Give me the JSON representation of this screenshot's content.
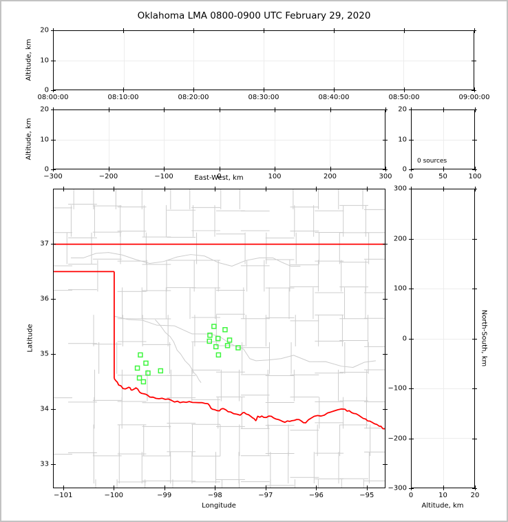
{
  "figure": {
    "title": "Oklahoma LMA 0800-0900 UTC February 29, 2020"
  },
  "colors": {
    "state_border": "#ff0000",
    "county_line": "#cccccc",
    "station_marker": "#3cf53c",
    "gridline": "#ececec",
    "axis": "#000000",
    "frame": "#c2c2c2"
  },
  "chart_data": [
    {
      "id": "time_height_panel",
      "type": "scatter",
      "title": "",
      "xlabel": "",
      "ylabel": "Altitude, km",
      "x_tick_labels": [
        "08:00:00",
        "08:10:00",
        "08:20:00",
        "08:30:00",
        "08:40:00",
        "08:50:00",
        "09:00:00"
      ],
      "ylim": [
        0,
        20
      ],
      "y_ticks": [
        0,
        10,
        20
      ],
      "grid": true,
      "points": []
    },
    {
      "id": "eastwest_height_panel",
      "type": "scatter",
      "xlabel": "East-West, km",
      "ylabel": "Altitude, km",
      "xlim": [
        -300,
        300
      ],
      "x_ticks": [
        -300,
        -200,
        -100,
        0,
        100,
        200,
        300
      ],
      "ylim": [
        0,
        20
      ],
      "y_ticks": [
        0,
        10,
        20
      ],
      "grid": true,
      "points": []
    },
    {
      "id": "altitude_histogram_panel",
      "type": "line",
      "xlabel": "",
      "ylabel": "",
      "xlim": [
        0,
        100
      ],
      "x_ticks": [
        0,
        50,
        100
      ],
      "ylim": [
        0,
        20
      ],
      "y_ticks": [
        0,
        10,
        20
      ],
      "annotation": "0 sources",
      "grid": true,
      "points": []
    },
    {
      "id": "plan_view_map",
      "type": "scatter",
      "xlabel": "Longitude",
      "ylabel": "Latitude",
      "xlim": [
        -101.2,
        -94.63
      ],
      "ylim": [
        32.56,
        38.0
      ],
      "x_ticks": [
        -101,
        -100,
        -99,
        -98,
        -97,
        -96,
        -95
      ],
      "y_ticks": [
        33,
        34,
        35,
        36,
        37
      ],
      "grid": false,
      "stations": [
        [
          -98.02,
          35.5
        ],
        [
          -97.8,
          35.44
        ],
        [
          -98.1,
          35.34
        ],
        [
          -97.94,
          35.28
        ],
        [
          -98.11,
          35.23
        ],
        [
          -97.71,
          35.25
        ],
        [
          -97.75,
          35.15
        ],
        [
          -97.98,
          35.13
        ],
        [
          -97.54,
          35.11
        ],
        [
          -97.93,
          34.98
        ],
        [
          -99.48,
          34.98
        ],
        [
          -99.37,
          34.83
        ],
        [
          -99.54,
          34.74
        ],
        [
          -99.33,
          34.65
        ],
        [
          -99.5,
          34.56
        ],
        [
          -99.42,
          34.49
        ],
        [
          -99.08,
          34.69
        ]
      ],
      "state_border": {
        "kansas_border_lat": 37.0,
        "panhandle_border_lat": 36.5,
        "panhandle_border_lon_end": -100.0,
        "meridian_lon": -100.0,
        "meridian_lat_range": [
          36.5,
          34.55
        ],
        "red_river": [
          [
            -100.0,
            34.55
          ],
          [
            -99.91,
            34.43
          ],
          [
            -99.78,
            34.36
          ],
          [
            -99.71,
            34.39
          ],
          [
            -99.64,
            34.34
          ],
          [
            -99.57,
            34.38
          ],
          [
            -99.46,
            34.28
          ],
          [
            -99.33,
            34.24
          ],
          [
            -99.23,
            34.21
          ],
          [
            -99.05,
            34.19
          ],
          [
            -98.86,
            34.15
          ],
          [
            -98.69,
            34.11
          ],
          [
            -98.51,
            34.13
          ],
          [
            -98.32,
            34.11
          ],
          [
            -98.14,
            34.09
          ],
          [
            -98.05,
            33.99
          ],
          [
            -97.91,
            33.96
          ],
          [
            -97.83,
            34.0
          ],
          [
            -97.69,
            33.94
          ],
          [
            -97.5,
            33.88
          ],
          [
            -97.42,
            33.93
          ],
          [
            -97.29,
            33.86
          ],
          [
            -97.19,
            33.78
          ],
          [
            -97.15,
            33.86
          ],
          [
            -97.03,
            33.84
          ],
          [
            -96.88,
            33.86
          ],
          [
            -96.74,
            33.8
          ],
          [
            -96.61,
            33.75
          ],
          [
            -96.47,
            33.78
          ],
          [
            -96.33,
            33.8
          ],
          [
            -96.2,
            33.74
          ],
          [
            -96.03,
            33.86
          ],
          [
            -95.83,
            33.88
          ],
          [
            -95.63,
            33.96
          ],
          [
            -95.42,
            33.99
          ],
          [
            -95.29,
            33.93
          ],
          [
            -95.15,
            33.88
          ],
          [
            -95.01,
            33.81
          ],
          [
            -94.88,
            33.75
          ],
          [
            -94.74,
            33.68
          ],
          [
            -94.63,
            33.63
          ]
        ]
      }
    },
    {
      "id": "northsouth_height_panel",
      "type": "scatter",
      "xlabel": "Altitude, km",
      "ylabel": "North-South, km",
      "xlim": [
        0,
        20
      ],
      "x_ticks": [
        0,
        10,
        20
      ],
      "ylim": [
        -300,
        300
      ],
      "y_ticks": [
        300,
        200,
        100,
        0,
        -100,
        -200,
        -300
      ],
      "grid": true,
      "points": []
    }
  ]
}
